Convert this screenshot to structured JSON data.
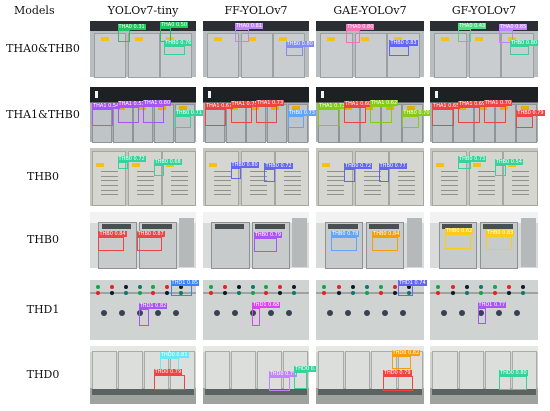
{
  "header": {
    "models_label": "Models",
    "columns": [
      "YOLOv7-tiny",
      "FF-YOLOv7",
      "GAE-YOLOv7",
      "GF-YOLOv7"
    ]
  },
  "rows": [
    {
      "label": "THA0&THB0",
      "scene": "cabinet-wall-dark-top",
      "detections": [
        [
          {
            "text": "THA0 0.31",
            "color": "#22c55e"
          },
          {
            "text": "THA0 0.50",
            "color": "#22c55e"
          },
          {
            "text": "THB0 0.76",
            "color": "#34d399"
          }
        ],
        [
          {
            "text": "THA0 0.81",
            "color": "#c084fc"
          },
          {
            "text": "THB0 0.80",
            "color": "#818cf8"
          }
        ],
        [
          {
            "text": "THA0 0.80",
            "color": "#f472b6"
          },
          {
            "text": "THB0 0.83",
            "color": "#6366f1"
          }
        ],
        [
          {
            "text": "THA0 0.43",
            "color": "#4ade80"
          },
          {
            "text": "THA0 0.85",
            "color": "#c084fc"
          },
          {
            "text": "THB0 0.80",
            "color": "#34d399"
          }
        ]
      ]
    },
    {
      "label": "THA1&THB0",
      "scene": "cabinet-row-dark-top",
      "detections": [
        [
          {
            "text": "THA1 0.54",
            "color": "#a855f7"
          },
          {
            "text": "THA1 0.57",
            "color": "#a855f7"
          },
          {
            "text": "THA1 0.80",
            "color": "#a855f7"
          },
          {
            "text": "THB0 0.71",
            "color": "#34d399"
          }
        ],
        [
          {
            "text": "THA1 0.67",
            "color": "#ef4444"
          },
          {
            "text": "THA1 0.75",
            "color": "#ef4444"
          },
          {
            "text": "THA1 0.73",
            "color": "#ef4444"
          },
          {
            "text": "THB0 0.73",
            "color": "#60a5fa"
          }
        ],
        [
          {
            "text": "THA1 0.73",
            "color": "#84cc16"
          },
          {
            "text": "THA1 0.60",
            "color": "#ef4444"
          },
          {
            "text": "THA1 0.62",
            "color": "#84cc16"
          },
          {
            "text": "THB0 0.70",
            "color": "#84cc16"
          }
        ],
        [
          {
            "text": "THA1 0.65",
            "color": "#ef4444"
          },
          {
            "text": "THA1 0.69",
            "color": "#ef4444"
          },
          {
            "text": "THA1 0.70",
            "color": "#ef4444"
          },
          {
            "text": "THB0 0.79",
            "color": "#ef4444"
          }
        ]
      ]
    },
    {
      "label": "THB0",
      "scene": "louvered-cabinets",
      "detections": [
        [
          {
            "text": "THB0 0.72",
            "color": "#34d399"
          },
          {
            "text": "THB0 0.68",
            "color": "#34d399"
          }
        ],
        [
          {
            "text": "THB0 0.80",
            "color": "#6366f1"
          },
          {
            "text": "THB0 0.72",
            "color": "#6366f1"
          }
        ],
        [
          {
            "text": "THB0 0.72",
            "color": "#6366f1"
          },
          {
            "text": "THB0 0.77",
            "color": "#6366f1"
          }
        ],
        [
          {
            "text": "THB0 0.73",
            "color": "#34d399"
          },
          {
            "text": "THB0 0.54",
            "color": "#34d399"
          }
        ]
      ]
    },
    {
      "label": "THB0",
      "scene": "twin-cabinets",
      "detections": [
        [
          {
            "text": "THB0 0.84",
            "color": "#ef4444"
          },
          {
            "text": "THB0 0.87",
            "color": "#ef4444"
          }
        ],
        [
          {
            "text": "THB0 0.79",
            "color": "#a855f7"
          }
        ],
        [
          {
            "text": "THB0 0.78",
            "color": "#60a5fa"
          },
          {
            "text": "THB0 0.84",
            "color": "#f59e0b"
          }
        ],
        [
          {
            "text": "THB0 0.62",
            "color": "#facc15"
          },
          {
            "text": "THB0 0.83",
            "color": "#facc15"
          }
        ]
      ]
    },
    {
      "label": "THD1",
      "scene": "control-panel",
      "detections": [
        [
          {
            "text": "THD1 0.85",
            "color": "#3b82f6"
          },
          {
            "text": "THD1 0.82",
            "color": "#a855f7"
          }
        ],
        [
          {
            "text": "THD1 0.68",
            "color": "#d946ef"
          }
        ],
        [
          {
            "text": "THD1 0.74",
            "color": "#6366f1"
          }
        ],
        [
          {
            "text": "THD1 0.77",
            "color": "#a855f7"
          }
        ]
      ]
    },
    {
      "label": "THD0",
      "scene": "switchgear-room",
      "detections": [
        [
          {
            "text": "THD0 0.81",
            "color": "#67e8f9"
          },
          {
            "text": "THD0 0.79",
            "color": "#ef4444"
          }
        ],
        [
          {
            "text": "THD0 0.75",
            "color": "#c084fc"
          },
          {
            "text": "THD0 0.77",
            "color": "#34d399"
          }
        ],
        [
          {
            "text": "THD0 0.82",
            "color": "#f59e0b"
          },
          {
            "text": "THD0 0.79",
            "color": "#ef4444"
          }
        ],
        [
          {
            "text": "THD0 0.80",
            "color": "#34d399"
          }
        ]
      ]
    }
  ]
}
